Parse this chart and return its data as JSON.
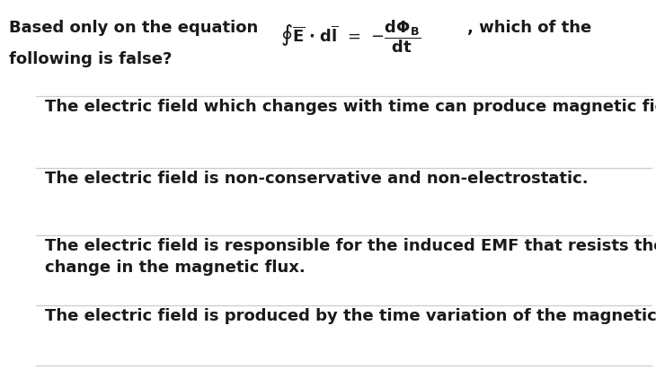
{
  "bg_color": "#ffffff",
  "text_color": "#1a1a1a",
  "line_color": "#cccccc",
  "options": [
    "The electric field which changes with time can produce magnetic field.",
    "The electric field is non-conservative and non-electrostatic.",
    "The electric field is responsible for the induced EMF that resists the\nchange in the magnetic flux.",
    "The electric field is produced by the time variation of the magnetic flux."
  ],
  "font_size_question": 13.0,
  "font_size_options": 13.0,
  "fig_width": 7.3,
  "fig_height": 4.12,
  "dpi": 100
}
